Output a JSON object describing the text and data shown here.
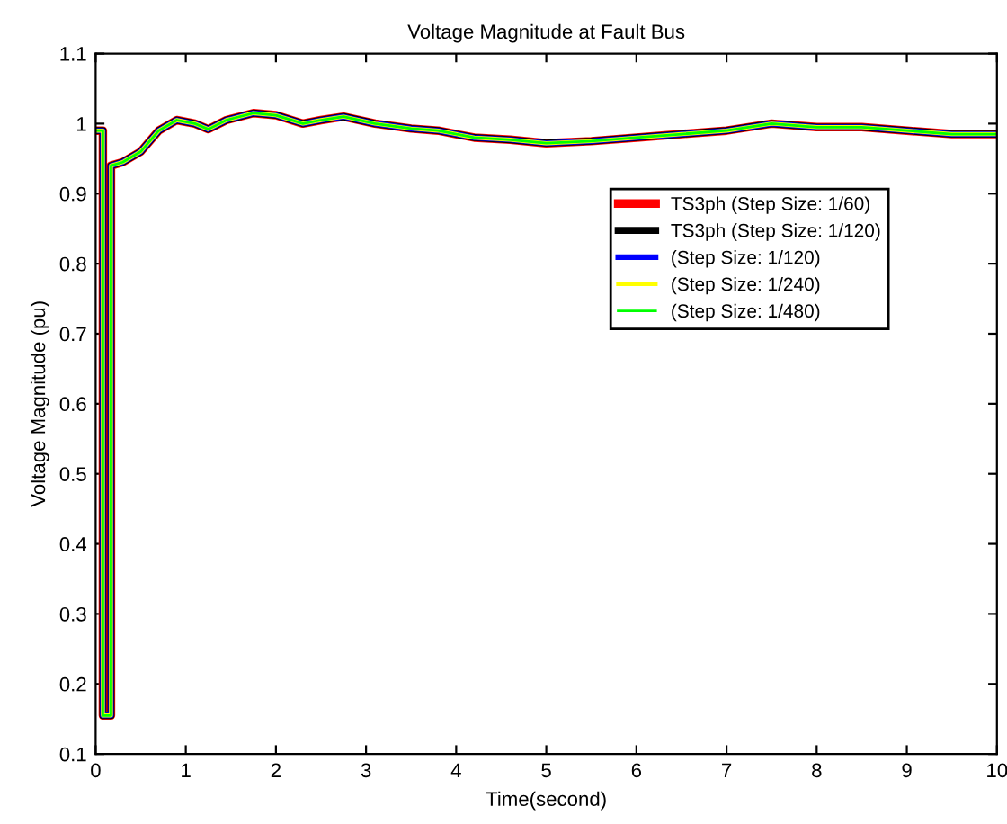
{
  "chart_data": {
    "type": "line",
    "title": "Voltage Magnitude at Fault Bus",
    "xlabel": "Time(second)",
    "ylabel": "Voltage Magnitude (pu)",
    "x": [
      0,
      0.08,
      0.08,
      0.17,
      0.17,
      0.3,
      0.5,
      0.7,
      0.9,
      1.1,
      1.25,
      1.45,
      1.75,
      2.0,
      2.3,
      2.5,
      2.75,
      3.1,
      3.5,
      3.8,
      4.2,
      4.6,
      5.0,
      5.5,
      6.0,
      6.5,
      7.0,
      7.5,
      8.0,
      8.5,
      9.0,
      9.5,
      10
    ],
    "series": [
      {
        "name": "TS3ph (Step Size: 1/60)",
        "color": "#ff0000",
        "values": [
          0.99,
          0.99,
          0.155,
          0.155,
          0.94,
          0.945,
          0.96,
          0.99,
          1.005,
          1.0,
          0.992,
          1.005,
          1.015,
          1.012,
          1.0,
          1.005,
          1.01,
          1.0,
          0.993,
          0.99,
          0.98,
          0.977,
          0.972,
          0.975,
          0.98,
          0.985,
          0.99,
          1.0,
          0.995,
          0.995,
          0.99,
          0.985,
          0.985
        ]
      },
      {
        "name": "TS3ph (Step Size: 1/120)",
        "color": "#000000",
        "values": [
          0.99,
          0.99,
          0.155,
          0.155,
          0.94,
          0.945,
          0.96,
          0.99,
          1.005,
          1.0,
          0.992,
          1.005,
          1.015,
          1.012,
          1.0,
          1.005,
          1.01,
          1.0,
          0.993,
          0.99,
          0.98,
          0.977,
          0.972,
          0.975,
          0.98,
          0.985,
          0.99,
          1.0,
          0.995,
          0.995,
          0.99,
          0.985,
          0.985
        ]
      },
      {
        "name": "(Step Size: 1/120)",
        "color": "#0000ff",
        "values": [
          0.99,
          0.99,
          0.155,
          0.155,
          0.94,
          0.945,
          0.96,
          0.99,
          1.005,
          1.0,
          0.992,
          1.005,
          1.015,
          1.012,
          1.0,
          1.005,
          1.01,
          1.0,
          0.993,
          0.99,
          0.98,
          0.977,
          0.972,
          0.975,
          0.98,
          0.985,
          0.99,
          1.0,
          0.995,
          0.995,
          0.99,
          0.985,
          0.985
        ]
      },
      {
        "name": "(Step Size: 1/240)",
        "color": "#ffff00",
        "values": [
          0.99,
          0.99,
          0.155,
          0.155,
          0.94,
          0.945,
          0.96,
          0.99,
          1.005,
          1.0,
          0.992,
          1.005,
          1.015,
          1.012,
          1.0,
          1.005,
          1.01,
          1.0,
          0.993,
          0.99,
          0.98,
          0.977,
          0.972,
          0.975,
          0.98,
          0.985,
          0.99,
          1.0,
          0.995,
          0.995,
          0.99,
          0.985,
          0.985
        ]
      },
      {
        "name": "(Step Size: 1/480)",
        "color": "#00ff00",
        "values": [
          0.99,
          0.99,
          0.155,
          0.155,
          0.94,
          0.945,
          0.96,
          0.99,
          1.005,
          1.0,
          0.992,
          1.005,
          1.015,
          1.012,
          1.0,
          1.005,
          1.01,
          1.0,
          0.993,
          0.99,
          0.98,
          0.977,
          0.972,
          0.975,
          0.98,
          0.985,
          0.99,
          1.0,
          0.995,
          0.995,
          0.99,
          0.985,
          0.985
        ]
      }
    ],
    "xlim": [
      0,
      10
    ],
    "xticks": [
      0,
      1,
      2,
      3,
      4,
      5,
      6,
      7,
      8,
      9,
      10
    ],
    "ylim": [
      0.1,
      1.1
    ],
    "yticks": [
      0.1,
      0.2,
      0.3,
      0.4,
      0.5,
      0.6,
      0.7,
      0.8,
      0.9,
      1,
      1.1
    ],
    "legend": "top right",
    "grid": false,
    "line_style": "solid"
  }
}
